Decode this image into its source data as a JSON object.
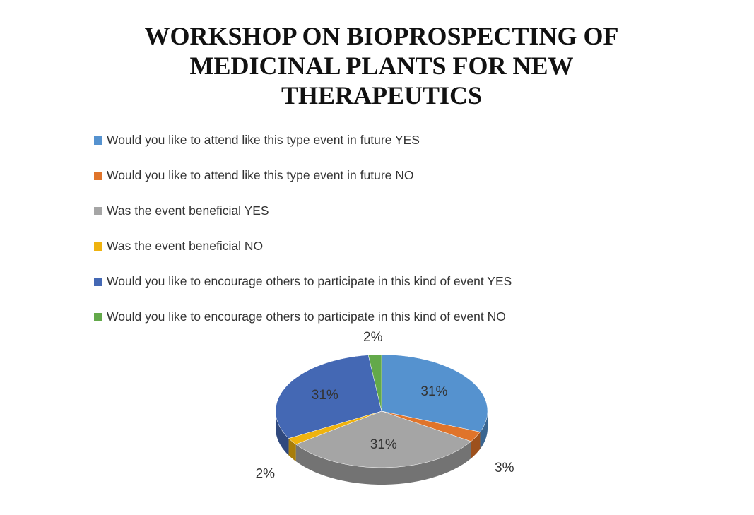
{
  "chart_data": {
    "type": "pie",
    "title": "WORKSHOP  ON BIOPROSPECTING OF MEDICINAL PLANTS FOR NEW THERAPEUTICS",
    "categories": [
      "Would you like to attend like this type event in  future YES",
      "Would you like to attend like this type event in  future  NO",
      "Was the event beneficial  YES",
      "Was the event beneficial  NO",
      "Would you like to encourage others to participate in this kind of event YES",
      "Would you like to encourage others to participate in this kind of event NO"
    ],
    "values": [
      31,
      3,
      31,
      2,
      31,
      2
    ],
    "value_labels": [
      "31%",
      "3%",
      "31%",
      "2%",
      "31%",
      "2%"
    ],
    "colors": [
      "#5592cf",
      "#e0742a",
      "#a5a5a5",
      "#efb30f",
      "#4468b4",
      "#63a94a"
    ],
    "legend": "top"
  }
}
